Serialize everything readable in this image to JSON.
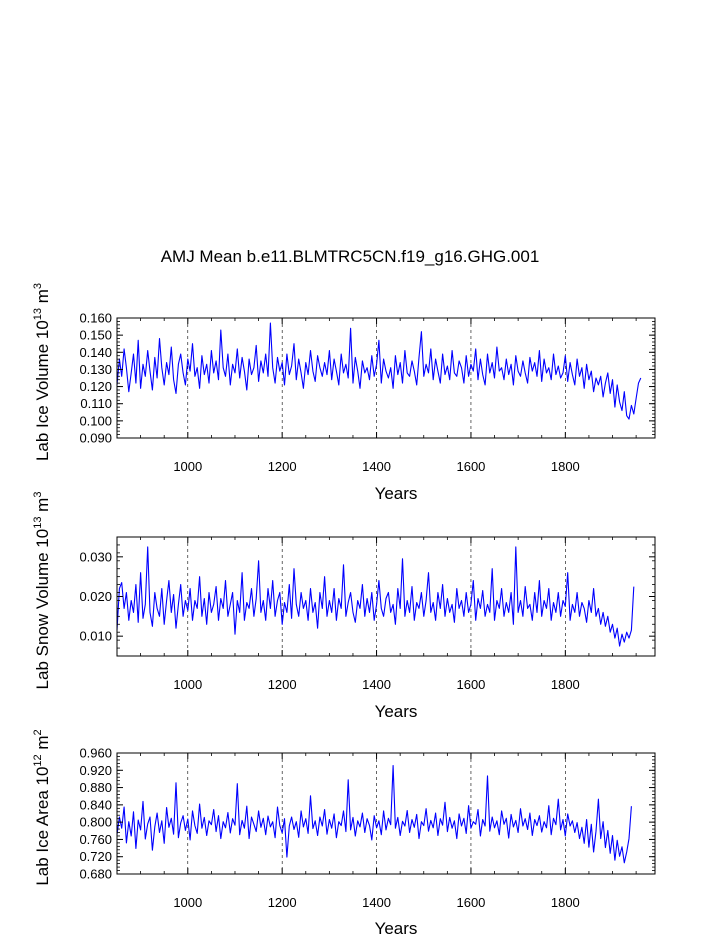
{
  "figure": {
    "title": "AMJ Mean b.e11.BLMTRC5CN.f19_g16.GHG.001"
  },
  "style": {
    "series_color": "#0000ff",
    "axis_color": "#000000",
    "grid_color": "#000000"
  },
  "chart_data": [
    {
      "type": "line",
      "title": "",
      "xlabel": "Years",
      "ylabel": "Lab Ice Volume 10",
      "ylabel_exp": "13",
      "ylabel_unit": " m",
      "ylabel_unit_exp": "3",
      "xlim": [
        850,
        1990
      ],
      "ylim": [
        0.09,
        0.16
      ],
      "xticks": [
        1000,
        1200,
        1400,
        1600,
        1800
      ],
      "xtick_labels": [
        "1000",
        "1200",
        "1400",
        "1600",
        "1800"
      ],
      "yticks": [
        0.09,
        0.1,
        0.11,
        0.12,
        0.13,
        0.14,
        0.15,
        0.16
      ],
      "ytick_labels": [
        "0.090",
        "0.100",
        "0.110",
        "0.120",
        "0.130",
        "0.140",
        "0.150",
        "0.160"
      ],
      "grid": "vertical dashed at major x ticks",
      "series": [
        {
          "name": "Lab Ice Volume",
          "x_start": 850,
          "x_step": 5,
          "values": [
            0.121,
            0.136,
            0.126,
            0.142,
            0.131,
            0.117,
            0.128,
            0.139,
            0.122,
            0.147,
            0.119,
            0.133,
            0.126,
            0.141,
            0.129,
            0.118,
            0.137,
            0.125,
            0.148,
            0.131,
            0.121,
            0.134,
            0.127,
            0.143,
            0.124,
            0.116,
            0.133,
            0.139,
            0.128,
            0.121,
            0.136,
            0.129,
            0.145,
            0.126,
            0.131,
            0.119,
            0.138,
            0.127,
            0.133,
            0.122,
            0.141,
            0.128,
            0.135,
            0.124,
            0.153,
            0.131,
            0.126,
            0.139,
            0.121,
            0.133,
            0.128,
            0.142,
            0.125,
            0.137,
            0.129,
            0.118,
            0.136,
            0.127,
            0.131,
            0.144,
            0.123,
            0.135,
            0.128,
            0.139,
            0.126,
            0.157,
            0.131,
            0.122,
            0.137,
            0.129,
            0.134,
            0.121,
            0.139,
            0.127,
            0.132,
            0.145,
            0.124,
            0.136,
            0.128,
            0.119,
            0.134,
            0.127,
            0.141,
            0.129,
            0.123,
            0.138,
            0.131,
            0.126,
            0.134,
            0.127,
            0.141,
            0.124,
            0.136,
            0.129,
            0.121,
            0.139,
            0.128,
            0.133,
            0.125,
            0.154,
            0.122,
            0.137,
            0.129,
            0.119,
            0.135,
            0.128,
            0.131,
            0.124,
            0.138,
            0.126,
            0.133,
            0.147,
            0.122,
            0.136,
            0.129,
            0.125,
            0.131,
            0.119,
            0.138,
            0.127,
            0.134,
            0.122,
            0.141,
            0.128,
            0.126,
            0.135,
            0.129,
            0.121,
            0.137,
            0.152,
            0.126,
            0.133,
            0.128,
            0.142,
            0.124,
            0.136,
            0.129,
            0.122,
            0.139,
            0.127,
            0.132,
            0.124,
            0.141,
            0.128,
            0.126,
            0.135,
            0.131,
            0.122,
            0.138,
            0.126,
            0.133,
            0.129,
            0.142,
            0.124,
            0.136,
            0.127,
            0.121,
            0.139,
            0.128,
            0.134,
            0.125,
            0.143,
            0.129,
            0.131,
            0.124,
            0.136,
            0.127,
            0.133,
            0.121,
            0.138,
            0.129,
            0.126,
            0.135,
            0.128,
            0.122,
            0.137,
            0.129,
            0.134,
            0.126,
            0.141,
            0.123,
            0.136,
            0.128,
            0.131,
            0.124,
            0.139,
            0.127,
            0.132,
            0.125,
            0.128,
            0.138,
            0.123,
            0.134,
            0.127,
            0.121,
            0.136,
            0.126,
            0.131,
            0.119,
            0.133,
            0.124,
            0.129,
            0.117,
            0.125,
            0.121,
            0.126,
            0.114,
            0.122,
            0.128,
            0.116,
            0.124,
            0.108,
            0.121,
            0.111,
            0.106,
            0.117,
            0.103,
            0.101,
            0.109,
            0.104,
            0.113,
            0.122,
            0.125
          ]
        }
      ]
    },
    {
      "type": "line",
      "title": "",
      "xlabel": "Years",
      "ylabel": "Lab Snow Volume 10",
      "ylabel_exp": "13",
      "ylabel_unit": " m",
      "ylabel_unit_exp": "3",
      "xlim": [
        850,
        1990
      ],
      "ylim": [
        0.005,
        0.035
      ],
      "xticks": [
        1000,
        1200,
        1400,
        1600,
        1800
      ],
      "xtick_labels": [
        "1000",
        "1200",
        "1400",
        "1600",
        "1800"
      ],
      "yticks": [
        0.01,
        0.02,
        0.03
      ],
      "ytick_labels": [
        "0.010",
        "0.020",
        "0.030"
      ],
      "grid": "vertical dashed at major x ticks",
      "series": [
        {
          "name": "Lab Snow Volume",
          "x_start": 850,
          "x_step": 5,
          "values": [
            0.0115,
            0.022,
            0.0235,
            0.017,
            0.021,
            0.014,
            0.019,
            0.016,
            0.023,
            0.0135,
            0.026,
            0.0145,
            0.018,
            0.0325,
            0.016,
            0.0125,
            0.021,
            0.017,
            0.015,
            0.022,
            0.013,
            0.019,
            0.024,
            0.016,
            0.0205,
            0.012,
            0.018,
            0.023,
            0.015,
            0.019,
            0.0165,
            0.022,
            0.014,
            0.019,
            0.017,
            0.025,
            0.015,
            0.0195,
            0.013,
            0.021,
            0.016,
            0.018,
            0.0225,
            0.014,
            0.0195,
            0.017,
            0.024,
            0.015,
            0.018,
            0.021,
            0.0105,
            0.019,
            0.016,
            0.026,
            0.014,
            0.0185,
            0.017,
            0.022,
            0.015,
            0.0195,
            0.029,
            0.016,
            0.019,
            0.014,
            0.022,
            0.017,
            0.024,
            0.015,
            0.019,
            0.021,
            0.013,
            0.0185,
            0.016,
            0.023,
            0.0145,
            0.027,
            0.018,
            0.015,
            0.021,
            0.017,
            0.019,
            0.014,
            0.022,
            0.016,
            0.0185,
            0.012,
            0.021,
            0.017,
            0.025,
            0.015,
            0.019,
            0.016,
            0.022,
            0.014,
            0.0195,
            0.017,
            0.028,
            0.015,
            0.0185,
            0.021,
            0.016,
            0.0135,
            0.019,
            0.017,
            0.023,
            0.015,
            0.0195,
            0.016,
            0.021,
            0.014,
            0.018,
            0.024,
            0.017,
            0.015,
            0.0195,
            0.021,
            0.016,
            0.018,
            0.013,
            0.022,
            0.017,
            0.0295,
            0.015,
            0.019,
            0.016,
            0.0225,
            0.014,
            0.0185,
            0.017,
            0.021,
            0.015,
            0.019,
            0.026,
            0.016,
            0.0185,
            0.014,
            0.021,
            0.017,
            0.023,
            0.015,
            0.0195,
            0.016,
            0.018,
            0.0135,
            0.022,
            0.017,
            0.019,
            0.015,
            0.021,
            0.016,
            0.018,
            0.024,
            0.014,
            0.0195,
            0.017,
            0.0215,
            0.015,
            0.018,
            0.016,
            0.027,
            0.014,
            0.019,
            0.017,
            0.022,
            0.015,
            0.0185,
            0.016,
            0.021,
            0.013,
            0.0325,
            0.016,
            0.019,
            0.015,
            0.0225,
            0.017,
            0.018,
            0.014,
            0.021,
            0.016,
            0.024,
            0.015,
            0.019,
            0.017,
            0.022,
            0.014,
            0.0185,
            0.016,
            0.021,
            0.015,
            0.019,
            0.0175,
            0.026,
            0.014,
            0.018,
            0.016,
            0.021,
            0.015,
            0.0185,
            0.017,
            0.0135,
            0.019,
            0.016,
            0.022,
            0.015,
            0.017,
            0.013,
            0.016,
            0.0125,
            0.015,
            0.011,
            0.013,
            0.0095,
            0.012,
            0.0075,
            0.0105,
            0.0085,
            0.011,
            0.0095,
            0.0115,
            0.0225
          ]
        }
      ]
    },
    {
      "type": "line",
      "title": "",
      "xlabel": "Years",
      "ylabel": "Lab Ice Area 10",
      "ylabel_exp": "12",
      "ylabel_unit": " m",
      "ylabel_unit_exp": "2",
      "xlim": [
        850,
        1990
      ],
      "ylim": [
        0.68,
        0.96
      ],
      "xticks": [
        1000,
        1200,
        1400,
        1600,
        1800
      ],
      "xtick_labels": [
        "1000",
        "1200",
        "1400",
        "1600",
        "1800"
      ],
      "yticks": [
        0.68,
        0.72,
        0.76,
        0.8,
        0.84,
        0.88,
        0.92,
        0.96
      ],
      "ytick_labels": [
        "0.680",
        "0.720",
        "0.760",
        "0.800",
        "0.840",
        "0.880",
        "0.920",
        "0.960"
      ],
      "grid": "vertical dashed at major x ticks",
      "series": [
        {
          "name": "Lab Ice Area",
          "x_start": 850,
          "x_step": 5,
          "values": [
            0.771,
            0.812,
            0.786,
            0.835,
            0.752,
            0.801,
            0.768,
            0.824,
            0.739,
            0.805,
            0.782,
            0.848,
            0.761,
            0.796,
            0.812,
            0.735,
            0.789,
            0.821,
            0.776,
            0.803,
            0.751,
            0.834,
            0.788,
            0.809,
            0.772,
            0.891,
            0.764,
            0.798,
            0.815,
            0.781,
            0.807,
            0.759,
            0.826,
            0.792,
            0.774,
            0.842,
            0.786,
            0.811,
            0.769,
            0.803,
            0.794,
            0.829,
            0.778,
            0.815,
            0.762,
            0.801,
            0.787,
            0.822,
            0.775,
            0.808,
            0.793,
            0.889,
            0.771,
            0.804,
            0.786,
            0.837,
            0.762,
            0.812,
            0.795,
            0.778,
            0.826,
            0.788,
            0.809,
            0.771,
            0.814,
            0.789,
            0.801,
            0.764,
            0.835,
            0.792,
            0.775,
            0.808,
            0.719,
            0.791,
            0.812,
            0.783,
            0.801,
            0.765,
            0.826,
            0.789,
            0.808,
            0.774,
            0.861,
            0.785,
            0.803,
            0.769,
            0.812,
            0.791,
            0.829,
            0.772,
            0.806,
            0.786,
            0.819,
            0.764,
            0.801,
            0.792,
            0.826,
            0.778,
            0.898,
            0.782,
            0.811,
            0.768,
            0.803,
            0.789,
            0.821,
            0.776,
            0.808,
            0.792,
            0.759,
            0.815,
            0.787,
            0.803,
            0.771,
            0.826,
            0.782,
            0.809,
            0.794,
            0.931,
            0.786,
            0.811,
            0.769,
            0.802,
            0.791,
            0.827,
            0.776,
            0.806,
            0.788,
            0.818,
            0.762,
            0.801,
            0.792,
            0.831,
            0.779,
            0.804,
            0.787,
            0.821,
            0.769,
            0.808,
            0.793,
            0.846,
            0.778,
            0.811,
            0.786,
            0.803,
            0.762,
            0.819,
            0.791,
            0.809,
            0.774,
            0.838,
            0.786,
            0.801,
            0.795,
            0.829,
            0.768,
            0.806,
            0.791,
            0.907,
            0.779,
            0.812,
            0.787,
            0.803,
            0.771,
            0.826,
            0.795,
            0.809,
            0.763,
            0.818,
            0.789,
            0.804,
            0.776,
            0.831,
            0.791,
            0.808,
            0.783,
            0.821,
            0.769,
            0.806,
            0.792,
            0.815,
            0.777,
            0.801,
            0.787,
            0.838,
            0.771,
            0.809,
            0.794,
            0.853,
            0.782,
            0.806,
            0.768,
            0.819,
            0.791,
            0.803,
            0.776,
            0.799,
            0.762,
            0.788,
            0.751,
            0.806,
            0.742,
            0.795,
            0.731,
            0.779,
            0.853,
            0.762,
            0.801,
            0.741,
            0.781,
            0.728,
            0.769,
            0.712,
            0.758,
            0.721,
            0.743,
            0.706,
            0.731,
            0.762,
            0.837
          ]
        }
      ]
    }
  ]
}
